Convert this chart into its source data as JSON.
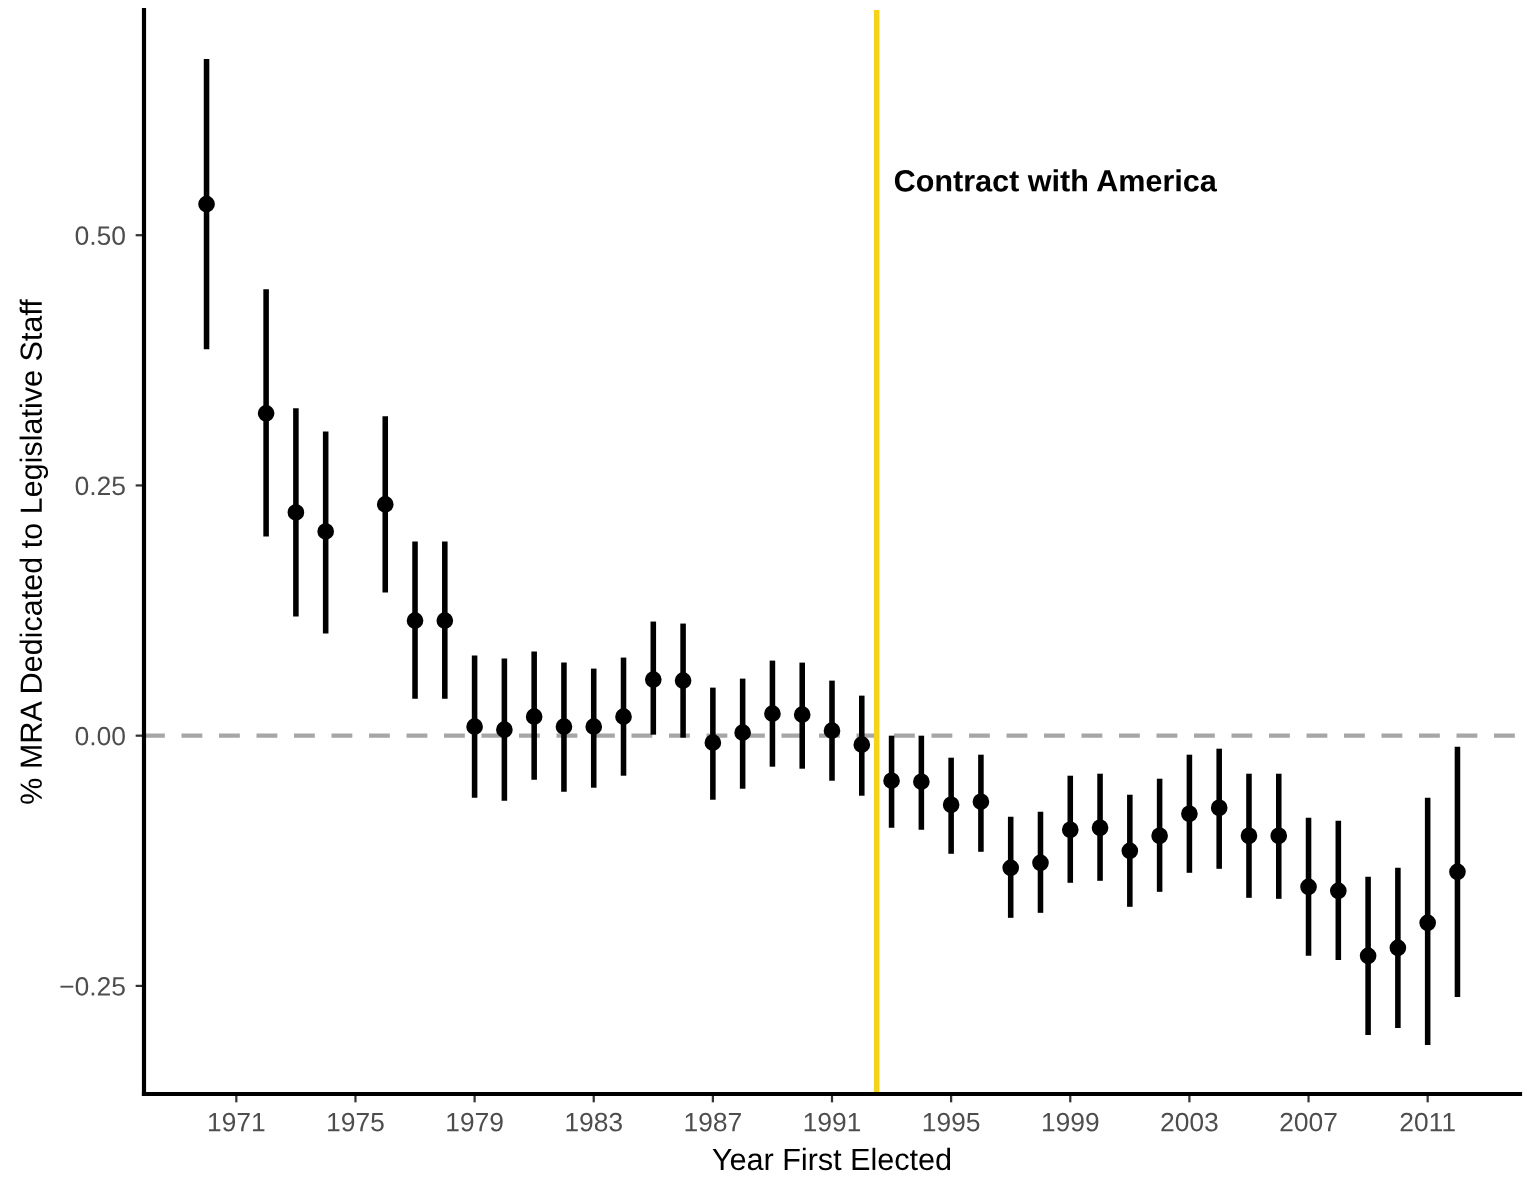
{
  "chart_data": {
    "type": "scatter",
    "xlabel": "Year First Elected",
    "ylabel": "% MRA Dedicated to Legislative Staff",
    "x": [
      1970,
      1972,
      1973,
      1974,
      1976,
      1977,
      1978,
      1979,
      1980,
      1981,
      1982,
      1983,
      1984,
      1985,
      1986,
      1987,
      1988,
      1989,
      1990,
      1991,
      1992,
      1993,
      1994,
      1995,
      1996,
      1997,
      1998,
      1999,
      2000,
      2001,
      2002,
      2003,
      2004,
      2005,
      2006,
      2007,
      2008,
      2009,
      2010,
      2011,
      2012
    ],
    "series": [
      {
        "color": "#000000",
        "values": [
          0.531,
          0.322,
          0.223,
          0.204,
          0.231,
          0.115,
          0.115,
          0.009,
          0.006,
          0.019,
          0.009,
          0.009,
          0.019,
          0.056,
          0.055,
          -0.007,
          0.003,
          0.022,
          0.021,
          0.005,
          -0.009,
          -0.045,
          -0.046,
          -0.069,
          -0.066,
          -0.132,
          -0.127,
          -0.094,
          -0.092,
          -0.115,
          -0.1,
          -0.078,
          -0.072,
          -0.1,
          -0.1,
          -0.151,
          -0.155,
          -0.22,
          -0.212,
          -0.187,
          -0.136
        ],
        "errors": [
          [
            0.386,
            0.676
          ],
          [
            0.199,
            0.446
          ],
          [
            0.119,
            0.327
          ],
          [
            0.102,
            0.304
          ],
          [
            0.143,
            0.319
          ],
          [
            0.037,
            0.194
          ],
          [
            0.037,
            0.194
          ],
          [
            -0.062,
            0.08
          ],
          [
            -0.065,
            0.077
          ],
          [
            -0.044,
            0.084
          ],
          [
            -0.056,
            0.073
          ],
          [
            -0.052,
            0.067
          ],
          [
            -0.04,
            0.078
          ],
          [
            0.001,
            0.114
          ],
          [
            -0.002,
            0.112
          ],
          [
            -0.064,
            0.048
          ],
          [
            -0.053,
            0.057
          ],
          [
            -0.031,
            0.075
          ],
          [
            -0.033,
            0.073
          ],
          [
            -0.045,
            0.055
          ],
          [
            -0.06,
            0.04
          ],
          [
            -0.092,
            0.0
          ],
          [
            -0.094,
            0.0
          ],
          [
            -0.118,
            -0.022
          ],
          [
            -0.116,
            -0.019
          ],
          [
            -0.182,
            -0.081
          ],
          [
            -0.177,
            -0.076
          ],
          [
            -0.147,
            -0.04
          ],
          [
            -0.145,
            -0.038
          ],
          [
            -0.171,
            -0.059
          ],
          [
            -0.156,
            -0.043
          ],
          [
            -0.137,
            -0.019
          ],
          [
            -0.133,
            -0.013
          ],
          [
            -0.162,
            -0.038
          ],
          [
            -0.163,
            -0.038
          ],
          [
            -0.22,
            -0.082
          ],
          [
            -0.224,
            -0.085
          ],
          [
            -0.299,
            -0.141
          ],
          [
            -0.292,
            -0.132
          ],
          [
            -0.309,
            -0.062
          ],
          [
            -0.261,
            -0.011
          ]
        ]
      }
    ],
    "xlim": [
      1967.9,
      2014.1
    ],
    "xticks": [
      1971,
      1975,
      1979,
      1983,
      1987,
      1991,
      1995,
      1999,
      2003,
      2007,
      2011
    ],
    "ylim": [
      -0.358,
      0.725
    ],
    "yticks": [
      {
        "value": -0.25,
        "label": "−0.25"
      },
      {
        "value": 0.25,
        "label": "0.25"
      },
      {
        "value": 0.5,
        "label": "0.50"
      },
      {
        "value": 0,
        "label": "0.00"
      }
    ],
    "ref_lines": [
      {
        "axis": "y",
        "value": 0,
        "color": "#a6a6a6",
        "line_style": "dashed"
      },
      {
        "axis": "x",
        "value": 1992.5,
        "label": "Contract with America",
        "color": "#f5d31a",
        "line_style": "solid"
      }
    ],
    "marker": "circle",
    "grid": false,
    "legend": false
  }
}
